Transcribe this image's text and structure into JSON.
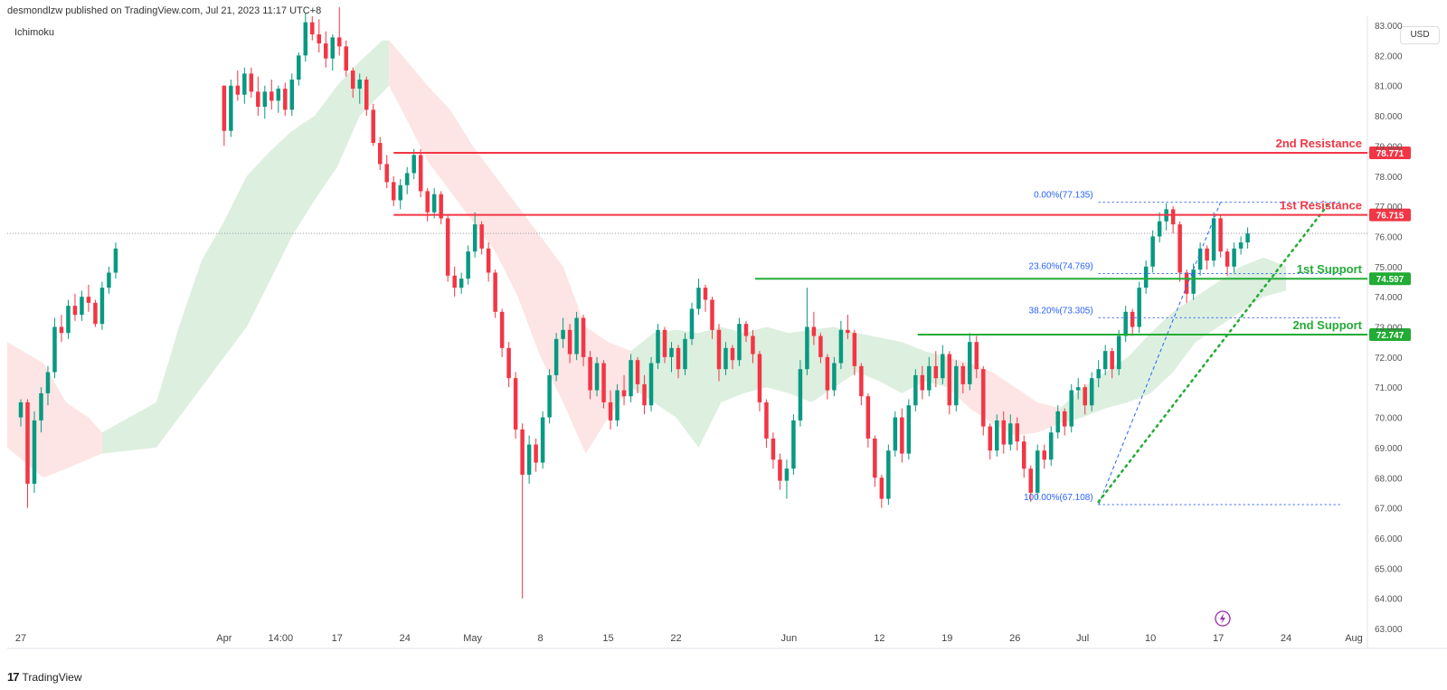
{
  "header": {
    "publish_line": "desmondlzw published on TradingView.com, Jul 21, 2023 11:17 UTC+8",
    "indicator": "Ichimoku",
    "currency": "USD"
  },
  "footer": {
    "brand": "TradingView",
    "logo_text": "17"
  },
  "colors": {
    "resistance": "#f23645",
    "support": "#22ab35",
    "fib": "#2962ff",
    "up": "#089981",
    "down": "#f23645",
    "cloud_green": "#d7ecd9",
    "cloud_red": "#fbe0df",
    "trend": "#22ab35"
  },
  "chart_data": {
    "type": "candlestick",
    "ylim": [
      63.0,
      83.0
    ],
    "y_ticks": [
      "63.000",
      "64.000",
      "65.000",
      "66.000",
      "67.000",
      "68.000",
      "69.000",
      "70.000",
      "71.000",
      "72.000",
      "73.000",
      "74.000",
      "75.000",
      "76.000",
      "77.000",
      "78.000",
      "79.000",
      "80.000",
      "81.000",
      "82.000",
      "83.000"
    ],
    "x_ticks": [
      {
        "label": "27",
        "d": -9
      },
      {
        "label": "Apr",
        "d": 0
      },
      {
        "label": "14:00",
        "d": 2.5
      },
      {
        "label": "17",
        "d": 5
      },
      {
        "label": "24",
        "d": 8
      },
      {
        "label": "May",
        "d": 11
      },
      {
        "label": "8",
        "d": 14
      },
      {
        "label": "15",
        "d": 17
      },
      {
        "label": "22",
        "d": 20
      },
      {
        "label": "Jun",
        "d": 25
      },
      {
        "label": "12",
        "d": 29
      },
      {
        "label": "19",
        "d": 32
      },
      {
        "label": "26",
        "d": 35
      },
      {
        "label": "Jul",
        "d": 38
      },
      {
        "label": "10",
        "d": 41
      },
      {
        "label": "17",
        "d": 44
      },
      {
        "label": "24",
        "d": 47
      },
      {
        "label": "Aug",
        "d": 50
      }
    ],
    "levels": [
      {
        "label": "2nd Resistance",
        "tag": "78.771",
        "price": 78.771,
        "kind": "resistance",
        "from_d": 7.5
      },
      {
        "label": "1st Resistance",
        "tag": "76.715",
        "price": 76.715,
        "kind": "resistance",
        "from_d": 7.5
      },
      {
        "label": "1st Support",
        "tag": "74.597",
        "price": 74.597,
        "kind": "support",
        "from_d": 23.5
      },
      {
        "label": "2nd Support",
        "tag": "72.747",
        "price": 72.747,
        "kind": "support",
        "from_d": 30.7
      }
    ],
    "fib": [
      {
        "label": "0.00%(77.135)",
        "price": 77.135
      },
      {
        "label": "23.60%(74.769)",
        "price": 74.769
      },
      {
        "label": "38.20%(73.305)",
        "price": 73.305
      },
      {
        "label": "100.00%(67.108)",
        "price": 67.108
      }
    ],
    "fib_range": {
      "from_d": 38.7,
      "to_d": 49.5
    },
    "fib_diagonal": {
      "d1": 38.7,
      "p1": 67.108,
      "d2": 44.1,
      "p2": 77.135
    },
    "trendline": {
      "d1": 38.7,
      "p1": 67.2,
      "d2": 48.9,
      "p2": 77.1
    },
    "current_price": 76.1,
    "candles_ohlc": [
      [
        -9.0,
        70.0,
        70.6,
        69.7,
        70.5
      ],
      [
        -8.7,
        70.5,
        70.6,
        67.0,
        67.8
      ],
      [
        -8.4,
        67.8,
        70.2,
        67.5,
        69.9
      ],
      [
        -8.1,
        69.9,
        71.0,
        69.5,
        70.8
      ],
      [
        -7.8,
        70.8,
        71.7,
        70.4,
        71.5
      ],
      [
        -7.5,
        71.5,
        73.3,
        71.3,
        73.0
      ],
      [
        -7.2,
        73.0,
        73.4,
        72.5,
        72.8
      ],
      [
        -6.9,
        72.8,
        73.9,
        72.6,
        73.7
      ],
      [
        -6.6,
        73.7,
        74.1,
        73.2,
        73.4
      ],
      [
        -6.3,
        73.4,
        74.2,
        73.2,
        74.0
      ],
      [
        -6.0,
        74.0,
        74.4,
        73.5,
        73.8
      ],
      [
        -5.7,
        73.8,
        73.9,
        73.0,
        73.1
      ],
      [
        -5.4,
        73.1,
        74.5,
        72.9,
        74.3
      ],
      [
        -5.1,
        74.3,
        75.0,
        74.1,
        74.8
      ],
      [
        -4.8,
        74.8,
        75.8,
        74.6,
        75.6
      ],
      [
        0.0,
        81.0,
        81.0,
        79.0,
        79.5
      ],
      [
        0.3,
        79.5,
        81.2,
        79.3,
        81.0
      ],
      [
        0.6,
        81.0,
        81.5,
        80.5,
        80.7
      ],
      [
        0.9,
        80.7,
        81.6,
        80.4,
        81.4
      ],
      [
        1.2,
        81.4,
        81.6,
        80.6,
        80.8
      ],
      [
        1.5,
        80.8,
        81.3,
        80.0,
        80.3
      ],
      [
        1.8,
        80.3,
        81.0,
        79.9,
        80.8
      ],
      [
        2.1,
        80.8,
        81.2,
        80.2,
        80.5
      ],
      [
        2.4,
        80.5,
        81.0,
        80.1,
        80.9
      ],
      [
        2.7,
        80.9,
        81.1,
        80.0,
        80.2
      ],
      [
        3.0,
        80.2,
        81.4,
        80.0,
        81.2
      ],
      [
        3.3,
        81.2,
        82.1,
        81.0,
        82.0
      ],
      [
        3.6,
        82.0,
        83.4,
        81.8,
        83.1
      ],
      [
        3.9,
        83.1,
        83.3,
        82.5,
        82.7
      ],
      [
        4.2,
        82.7,
        83.2,
        82.1,
        82.4
      ],
      [
        4.5,
        82.4,
        82.8,
        81.6,
        81.9
      ],
      [
        4.8,
        81.9,
        82.7,
        81.5,
        82.6
      ],
      [
        5.1,
        82.6,
        83.6,
        82.0,
        82.3
      ],
      [
        5.4,
        82.3,
        82.5,
        81.3,
        81.5
      ],
      [
        5.7,
        81.5,
        81.6,
        80.6,
        80.9
      ],
      [
        6.0,
        80.9,
        81.4,
        80.4,
        81.2
      ],
      [
        6.3,
        81.2,
        81.3,
        80.0,
        80.2
      ],
      [
        6.6,
        80.2,
        80.4,
        79.0,
        79.1
      ],
      [
        6.9,
        79.1,
        79.3,
        78.2,
        78.4
      ],
      [
        7.2,
        78.4,
        78.7,
        77.6,
        77.8
      ],
      [
        7.5,
        77.8,
        78.0,
        77.0,
        77.2
      ],
      [
        7.8,
        77.2,
        77.9,
        76.9,
        77.7
      ],
      [
        8.1,
        77.7,
        78.3,
        77.4,
        78.1
      ],
      [
        8.4,
        78.1,
        78.9,
        77.9,
        78.7
      ],
      [
        8.7,
        78.7,
        78.9,
        77.3,
        77.5
      ],
      [
        9.0,
        77.5,
        77.6,
        76.5,
        76.8
      ],
      [
        9.3,
        76.8,
        77.6,
        76.6,
        77.4
      ],
      [
        9.6,
        77.4,
        77.5,
        76.4,
        76.6
      ],
      [
        9.9,
        76.6,
        76.7,
        74.5,
        74.7
      ],
      [
        10.2,
        74.7,
        75.0,
        74.0,
        74.3
      ],
      [
        10.5,
        74.3,
        74.8,
        74.1,
        74.6
      ],
      [
        10.8,
        74.6,
        75.7,
        74.4,
        75.5
      ],
      [
        11.1,
        75.5,
        76.8,
        75.3,
        76.4
      ],
      [
        11.4,
        76.4,
        76.5,
        75.4,
        75.6
      ],
      [
        11.7,
        75.6,
        75.8,
        74.5,
        74.8
      ],
      [
        12.0,
        74.8,
        74.9,
        73.3,
        73.5
      ],
      [
        12.3,
        73.5,
        73.6,
        72.0,
        72.3
      ],
      [
        12.6,
        72.3,
        72.5,
        71.0,
        71.3
      ],
      [
        12.9,
        71.3,
        71.5,
        69.3,
        69.6
      ],
      [
        13.2,
        69.6,
        69.8,
        64.0,
        68.1
      ],
      [
        13.5,
        68.1,
        69.4,
        67.8,
        69.1
      ],
      [
        13.8,
        69.1,
        69.3,
        68.2,
        68.5
      ],
      [
        14.1,
        68.5,
        70.2,
        68.3,
        70.0
      ],
      [
        14.4,
        70.0,
        71.6,
        69.8,
        71.4
      ],
      [
        14.7,
        71.4,
        72.8,
        71.2,
        72.6
      ],
      [
        15.0,
        72.6,
        73.3,
        72.3,
        72.9
      ],
      [
        15.3,
        72.9,
        73.1,
        71.8,
        72.1
      ],
      [
        15.6,
        72.1,
        73.5,
        71.9,
        73.3
      ],
      [
        15.9,
        73.3,
        73.4,
        71.7,
        72.0
      ],
      [
        16.2,
        72.0,
        72.2,
        70.6,
        70.9
      ],
      [
        16.5,
        70.9,
        72.0,
        70.7,
        71.8
      ],
      [
        16.8,
        71.8,
        71.9,
        70.3,
        70.5
      ],
      [
        17.1,
        70.5,
        70.9,
        69.6,
        69.9
      ],
      [
        17.4,
        69.9,
        71.1,
        69.7,
        70.9
      ],
      [
        17.7,
        70.9,
        71.4,
        70.4,
        70.7
      ],
      [
        18.0,
        70.7,
        72.1,
        70.5,
        71.9
      ],
      [
        18.3,
        71.9,
        72.0,
        70.8,
        71.1
      ],
      [
        18.6,
        71.1,
        71.4,
        70.1,
        70.4
      ],
      [
        18.9,
        70.4,
        72.0,
        70.2,
        71.8
      ],
      [
        19.2,
        71.8,
        73.1,
        71.6,
        72.9
      ],
      [
        19.5,
        72.9,
        73.0,
        71.8,
        72.0
      ],
      [
        19.8,
        72.0,
        72.5,
        71.5,
        72.3
      ],
      [
        20.1,
        72.3,
        72.4,
        71.3,
        71.6
      ],
      [
        20.4,
        71.6,
        72.8,
        71.4,
        72.6
      ],
      [
        20.7,
        72.6,
        73.8,
        72.4,
        73.6
      ],
      [
        21.0,
        73.6,
        74.6,
        73.4,
        74.3
      ],
      [
        21.3,
        74.3,
        74.4,
        73.5,
        73.9
      ],
      [
        21.6,
        73.9,
        74.0,
        72.6,
        72.9
      ],
      [
        21.9,
        72.9,
        73.1,
        71.2,
        71.6
      ],
      [
        22.2,
        71.6,
        72.5,
        71.4,
        72.3
      ],
      [
        22.5,
        72.3,
        72.4,
        71.6,
        71.9
      ],
      [
        22.8,
        71.9,
        73.3,
        71.7,
        73.1
      ],
      [
        23.1,
        73.1,
        73.2,
        72.5,
        72.7
      ],
      [
        23.4,
        72.7,
        72.9,
        71.8,
        72.1
      ],
      [
        23.7,
        72.1,
        72.2,
        70.2,
        70.5
      ],
      [
        24.0,
        70.5,
        70.6,
        69.0,
        69.3
      ],
      [
        24.3,
        69.3,
        69.5,
        68.3,
        68.6
      ],
      [
        24.6,
        68.6,
        68.8,
        67.6,
        67.9
      ],
      [
        24.9,
        67.9,
        68.6,
        67.3,
        68.3
      ],
      [
        25.2,
        68.3,
        70.1,
        68.1,
        69.9
      ],
      [
        25.5,
        69.9,
        71.9,
        69.7,
        71.6
      ],
      [
        25.8,
        71.6,
        74.3,
        71.4,
        73.0
      ],
      [
        26.1,
        73.0,
        73.5,
        72.4,
        72.7
      ],
      [
        26.4,
        72.7,
        72.8,
        71.8,
        72.0
      ],
      [
        26.7,
        72.0,
        72.1,
        70.6,
        70.9
      ],
      [
        27.0,
        70.9,
        72.0,
        70.7,
        71.8
      ],
      [
        27.3,
        71.8,
        73.2,
        71.6,
        72.9
      ],
      [
        27.6,
        72.9,
        73.4,
        72.6,
        72.8
      ],
      [
        27.9,
        72.8,
        72.9,
        71.4,
        71.7
      ],
      [
        28.2,
        71.7,
        71.8,
        70.4,
        70.7
      ],
      [
        28.5,
        70.7,
        70.8,
        69.0,
        69.3
      ],
      [
        28.8,
        69.3,
        69.4,
        67.7,
        68.0
      ],
      [
        29.1,
        68.0,
        68.1,
        67.0,
        67.3
      ],
      [
        29.4,
        67.3,
        69.1,
        67.1,
        68.9
      ],
      [
        29.7,
        68.9,
        70.2,
        68.7,
        70.0
      ],
      [
        30.0,
        70.0,
        70.3,
        68.5,
        68.8
      ],
      [
        30.3,
        68.8,
        70.6,
        68.6,
        70.4
      ],
      [
        30.6,
        70.4,
        71.6,
        70.2,
        71.4
      ],
      [
        30.9,
        71.4,
        71.7,
        70.6,
        70.9
      ],
      [
        31.2,
        70.9,
        72.0,
        70.7,
        71.7
      ],
      [
        31.5,
        71.7,
        72.2,
        71.0,
        71.3
      ],
      [
        31.8,
        71.3,
        72.4,
        71.1,
        72.1
      ],
      [
        32.1,
        72.1,
        72.2,
        70.1,
        70.4
      ],
      [
        32.4,
        70.4,
        71.9,
        70.2,
        71.7
      ],
      [
        32.7,
        71.7,
        71.8,
        70.8,
        71.1
      ],
      [
        33.0,
        71.1,
        72.8,
        70.9,
        72.5
      ],
      [
        33.3,
        72.5,
        72.7,
        71.3,
        71.6
      ],
      [
        33.6,
        71.6,
        71.7,
        69.4,
        69.7
      ],
      [
        33.9,
        69.7,
        69.8,
        68.6,
        68.9
      ],
      [
        34.2,
        68.9,
        70.1,
        68.7,
        69.9
      ],
      [
        34.5,
        69.9,
        70.2,
        68.8,
        69.1
      ],
      [
        34.8,
        69.1,
        70.1,
        68.9,
        69.8
      ],
      [
        35.1,
        69.8,
        70.0,
        68.9,
        69.2
      ],
      [
        35.4,
        69.2,
        69.4,
        68.0,
        68.3
      ],
      [
        35.7,
        68.3,
        68.4,
        67.2,
        67.5
      ],
      [
        36.0,
        67.5,
        69.1,
        67.3,
        68.9
      ],
      [
        36.3,
        68.9,
        69.1,
        68.3,
        68.6
      ],
      [
        36.6,
        68.6,
        69.7,
        68.4,
        69.5
      ],
      [
        36.9,
        69.5,
        70.4,
        69.3,
        70.2
      ],
      [
        37.2,
        70.2,
        70.3,
        69.4,
        69.7
      ],
      [
        37.5,
        69.7,
        71.1,
        69.5,
        70.9
      ],
      [
        37.8,
        70.9,
        71.3,
        70.6,
        71.0
      ],
      [
        38.1,
        71.0,
        71.1,
        70.1,
        70.4
      ],
      [
        38.4,
        70.4,
        71.5,
        70.2,
        71.3
      ],
      [
        38.7,
        71.3,
        71.9,
        71.0,
        71.6
      ],
      [
        39.0,
        71.6,
        72.4,
        71.4,
        72.2
      ],
      [
        39.3,
        72.2,
        72.3,
        71.3,
        71.6
      ],
      [
        39.6,
        71.6,
        72.9,
        71.4,
        72.7
      ],
      [
        39.9,
        72.7,
        73.7,
        72.5,
        73.5
      ],
      [
        40.2,
        73.5,
        73.6,
        72.7,
        73.0
      ],
      [
        40.5,
        73.0,
        74.5,
        72.8,
        74.3
      ],
      [
        40.8,
        74.3,
        75.2,
        74.1,
        75.0
      ],
      [
        41.1,
        75.0,
        76.2,
        74.8,
        76.0
      ],
      [
        41.4,
        76.0,
        76.8,
        75.8,
        76.5
      ],
      [
        41.7,
        76.5,
        77.1,
        76.2,
        76.9
      ],
      [
        42.0,
        76.9,
        77.0,
        76.1,
        76.4
      ],
      [
        42.3,
        76.4,
        76.5,
        74.5,
        74.8
      ],
      [
        42.6,
        74.8,
        74.9,
        73.8,
        74.1
      ],
      [
        42.9,
        74.1,
        75.1,
        73.9,
        74.9
      ],
      [
        43.2,
        74.9,
        75.8,
        74.7,
        75.6
      ],
      [
        43.5,
        75.6,
        75.7,
        74.9,
        75.2
      ],
      [
        43.8,
        75.2,
        76.8,
        75.0,
        76.6
      ],
      [
        44.1,
        76.6,
        76.7,
        75.3,
        75.5
      ],
      [
        44.4,
        75.5,
        75.6,
        74.7,
        75.0
      ],
      [
        44.7,
        75.0,
        75.8,
        74.8,
        75.6
      ],
      [
        45.0,
        75.6,
        76.0,
        75.4,
        75.8
      ],
      [
        45.3,
        75.8,
        76.3,
        75.6,
        76.1
      ]
    ]
  }
}
